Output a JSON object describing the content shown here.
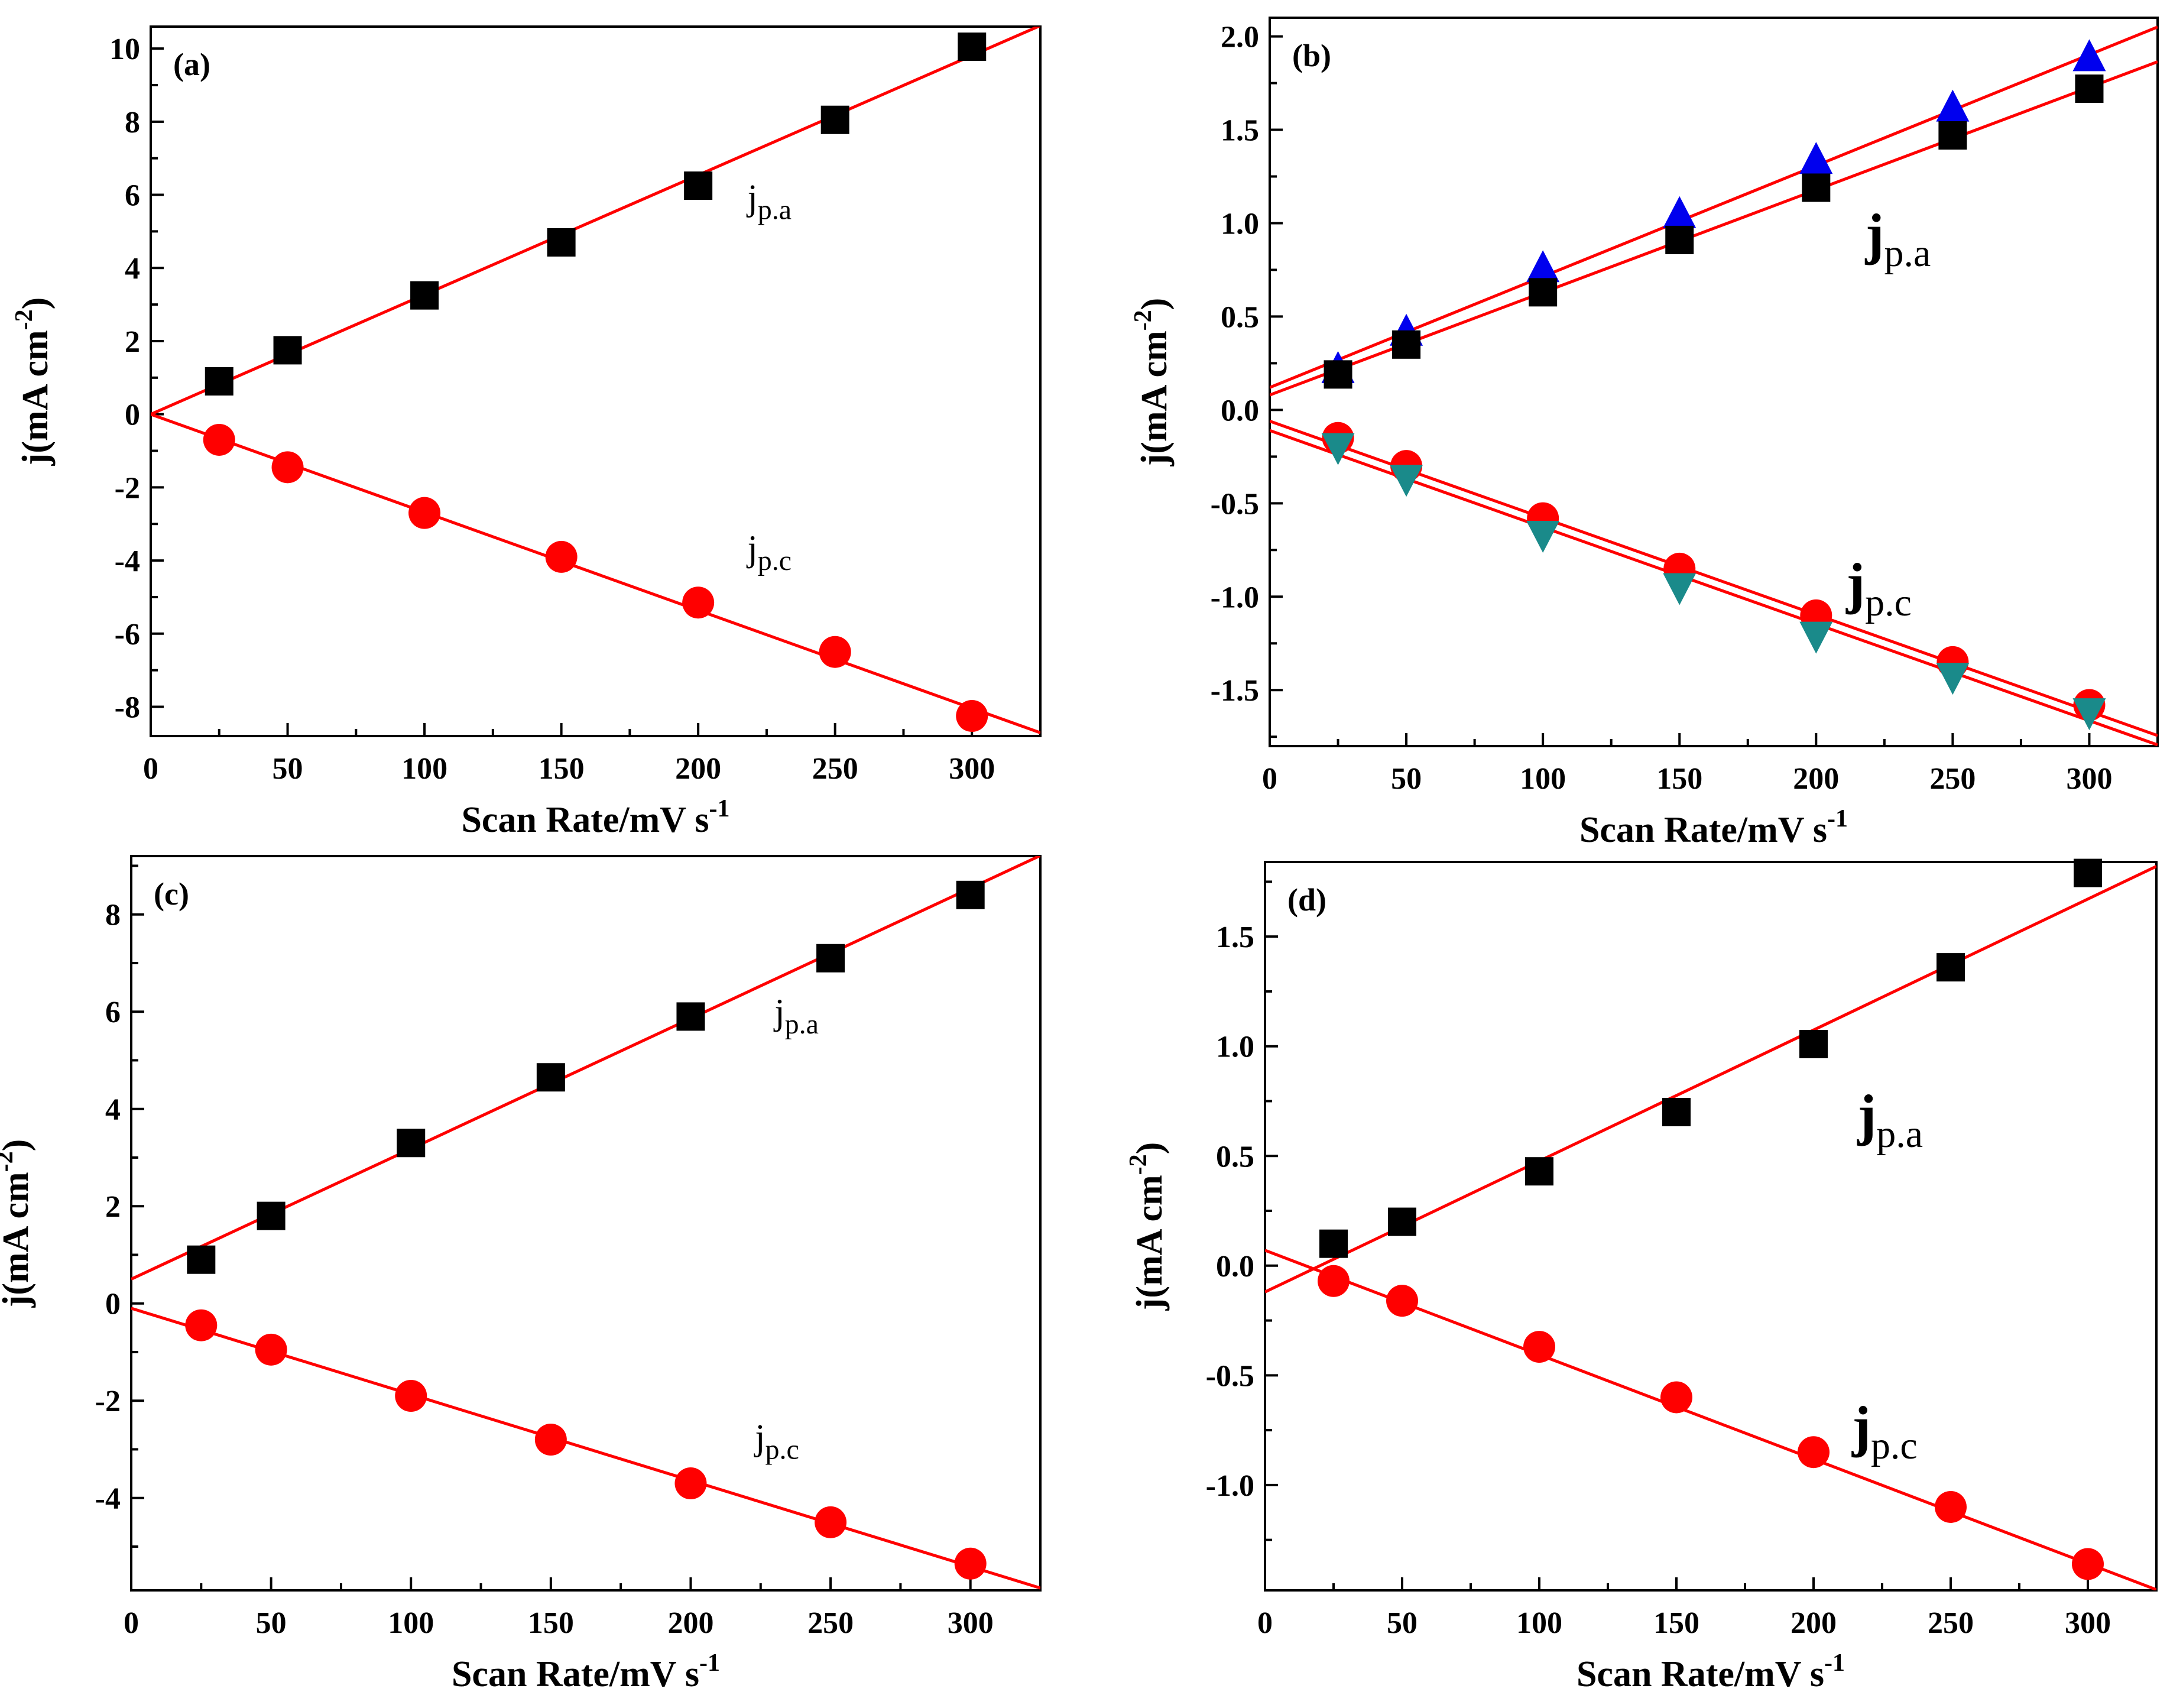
{
  "figure": {
    "colors": {
      "fit_line": "#ff0000",
      "square": "#000000",
      "circle": "#ff0000",
      "up_triangle": "#0000ee",
      "down_triangle": "#1a8a8a"
    }
  },
  "chart_data": [
    {
      "id": "a",
      "type": "scatter",
      "panel_label": "(a)",
      "xlabel": {
        "main": "Scan Rate/mV s",
        "sup": "-1"
      },
      "ylabel": {
        "main": "j(mA cm",
        "sup": "-2",
        "close": ")"
      },
      "xlim": [
        0,
        325
      ],
      "ylim": [
        -8.8,
        10.6
      ],
      "xticks": [
        0,
        50,
        100,
        150,
        200,
        250,
        300
      ],
      "yticks": [
        -8,
        -6,
        -4,
        -2,
        0,
        2,
        4,
        6,
        8,
        10
      ],
      "ytick_labels": [
        "-8",
        "-6",
        "-4",
        "-2",
        "0",
        "2",
        "4",
        "6",
        "8",
        "10"
      ],
      "series": [
        {
          "name": "j_p.a",
          "marker": "square",
          "color": "#000000",
          "x": [
            25,
            50,
            100,
            150,
            200,
            250,
            300
          ],
          "y": [
            0.9,
            1.75,
            3.25,
            4.7,
            6.25,
            8.05,
            10.05
          ],
          "fit": {
            "slope": 0.0327,
            "intercept": 0.0
          }
        },
        {
          "name": "j_p.c",
          "marker": "circle",
          "color": "#ff0000",
          "x": [
            25,
            50,
            100,
            150,
            200,
            250,
            300
          ],
          "y": [
            -0.7,
            -1.45,
            -2.7,
            -3.9,
            -5.15,
            -6.5,
            -8.25
          ],
          "fit": {
            "slope": -0.0268,
            "intercept": 0.0
          }
        }
      ],
      "annotations": [
        {
          "base": "j",
          "sub": "p.a",
          "at": [
            218,
            5.6
          ],
          "size": "small"
        },
        {
          "base": "j",
          "sub": "p.c",
          "at": [
            218,
            -4.0
          ],
          "size": "small"
        }
      ]
    },
    {
      "id": "b",
      "type": "scatter",
      "panel_label": "(b)",
      "xlabel": {
        "main": "Scan Rate/mV s",
        "sup": "-1"
      },
      "ylabel": {
        "main": "j(mA cm",
        "sup": "-2",
        "close": ")"
      },
      "xlim": [
        0,
        325
      ],
      "ylim": [
        -1.8,
        2.1
      ],
      "xticks": [
        0,
        50,
        100,
        150,
        200,
        250,
        300
      ],
      "yticks": [
        -1.5,
        -1.0,
        -0.5,
        0.0,
        0.5,
        1.0,
        1.5,
        2.0
      ],
      "ytick_labels": [
        "-1.5",
        "-1.0",
        "-0.5",
        "0.0",
        "0.5",
        "1.0",
        "1.5",
        "2.0"
      ],
      "series": [
        {
          "name": "j_p.a up-triangle",
          "marker": "up_triangle",
          "color": "#0000ee",
          "x": [
            25,
            50,
            100,
            150,
            200,
            250,
            300
          ],
          "y": [
            0.22,
            0.42,
            0.76,
            1.05,
            1.34,
            1.62,
            1.89
          ],
          "fit": {
            "slope": 0.00594,
            "intercept": 0.12
          }
        },
        {
          "name": "j_p.a square",
          "marker": "square",
          "color": "#000000",
          "x": [
            25,
            50,
            100,
            150,
            200,
            250,
            300
          ],
          "y": [
            0.19,
            0.35,
            0.63,
            0.91,
            1.19,
            1.47,
            1.72
          ],
          "fit": {
            "slope": 0.00549,
            "intercept": 0.08
          }
        },
        {
          "name": "j_p.c circle",
          "marker": "circle",
          "color": "#ff0000",
          "x": [
            25,
            50,
            100,
            150,
            200,
            250,
            300
          ],
          "y": [
            -0.15,
            -0.3,
            -0.58,
            -0.85,
            -1.1,
            -1.35,
            -1.58
          ],
          "fit": {
            "slope": -0.00518,
            "intercept": -0.06
          }
        },
        {
          "name": "j_p.c down-triangle",
          "marker": "down_triangle",
          "color": "#1a8a8a",
          "x": [
            25,
            50,
            100,
            150,
            200,
            250,
            300
          ],
          "y": [
            -0.2,
            -0.37,
            -0.67,
            -0.95,
            -1.21,
            -1.43,
            -1.62
          ],
          "fit": {
            "slope": -0.00518,
            "intercept": -0.11
          }
        }
      ],
      "annotations": [
        {
          "base": "j",
          "sub": "p.a",
          "at": [
            218,
            0.84
          ],
          "size": "large"
        },
        {
          "base": "j",
          "sub": "p.c",
          "at": [
            211,
            -1.03
          ],
          "size": "large"
        }
      ]
    },
    {
      "id": "c",
      "type": "scatter",
      "panel_label": "(c)",
      "xlabel": {
        "main": "Scan Rate/mV s",
        "sup": "-1"
      },
      "ylabel": {
        "main": "j(mA cm",
        "sup": "-2",
        "close": ")"
      },
      "xlim": [
        0,
        325
      ],
      "ylim": [
        -5.9,
        9.2
      ],
      "xticks": [
        0,
        50,
        100,
        150,
        200,
        250,
        300
      ],
      "yticks": [
        -4,
        -2,
        0,
        2,
        4,
        6,
        8
      ],
      "ytick_labels": [
        "-4",
        "-2",
        "0",
        "2",
        "4",
        "6",
        "8"
      ],
      "series": [
        {
          "name": "j_p.a",
          "marker": "square",
          "color": "#000000",
          "x": [
            25,
            50,
            100,
            150,
            200,
            250,
            300
          ],
          "y": [
            0.9,
            1.8,
            3.3,
            4.65,
            5.9,
            7.1,
            8.4
          ],
          "fit": {
            "slope": 0.0268,
            "intercept": 0.5
          }
        },
        {
          "name": "j_p.c",
          "marker": "circle",
          "color": "#ff0000",
          "x": [
            25,
            50,
            100,
            150,
            200,
            250,
            300
          ],
          "y": [
            -0.45,
            -0.95,
            -1.9,
            -2.8,
            -3.7,
            -4.5,
            -5.35
          ],
          "fit": {
            "slope": -0.0177,
            "intercept": -0.1
          }
        }
      ],
      "annotations": [
        {
          "base": "j",
          "sub": "p.a",
          "at": [
            230,
            5.75
          ],
          "size": "small"
        },
        {
          "base": "j",
          "sub": "p.c",
          "at": [
            223,
            -3.0
          ],
          "size": "small"
        }
      ]
    },
    {
      "id": "d",
      "type": "scatter",
      "panel_label": "(d)",
      "xlabel": {
        "main": "Scan Rate/mV s",
        "sup": "-1"
      },
      "ylabel": {
        "main": "j(mA cm",
        "sup": "-2",
        "close": ")"
      },
      "xlim": [
        0,
        325
      ],
      "ylim": [
        -1.48,
        1.84
      ],
      "xticks": [
        0,
        50,
        100,
        150,
        200,
        250,
        300
      ],
      "yticks": [
        -1.0,
        -0.5,
        0.0,
        0.5,
        1.0,
        1.5
      ],
      "ytick_labels": [
        "-1.0",
        "-0.5",
        "0.0",
        "0.5",
        "1.0",
        "1.5"
      ],
      "series": [
        {
          "name": "j_p.a",
          "marker": "square",
          "color": "#000000",
          "x": [
            25,
            50,
            100,
            150,
            200,
            250,
            300
          ],
          "y": [
            0.1,
            0.2,
            0.43,
            0.7,
            1.01,
            1.36,
            1.79
          ],
          "fit": {
            "slope": 0.00597,
            "intercept": -0.12
          }
        },
        {
          "name": "j_p.c",
          "marker": "circle",
          "color": "#ff0000",
          "x": [
            25,
            50,
            100,
            150,
            200,
            250,
            300
          ],
          "y": [
            -0.07,
            -0.16,
            -0.37,
            -0.6,
            -0.85,
            -1.1,
            -1.36
          ],
          "fit": {
            "slope": -0.00476,
            "intercept": 0.07
          }
        }
      ],
      "annotations": [
        {
          "base": "j",
          "sub": "p.a",
          "at": [
            216,
            0.6
          ],
          "size": "large"
        },
        {
          "base": "j",
          "sub": "p.c",
          "at": [
            214,
            -0.82
          ],
          "size": "large"
        }
      ]
    }
  ]
}
